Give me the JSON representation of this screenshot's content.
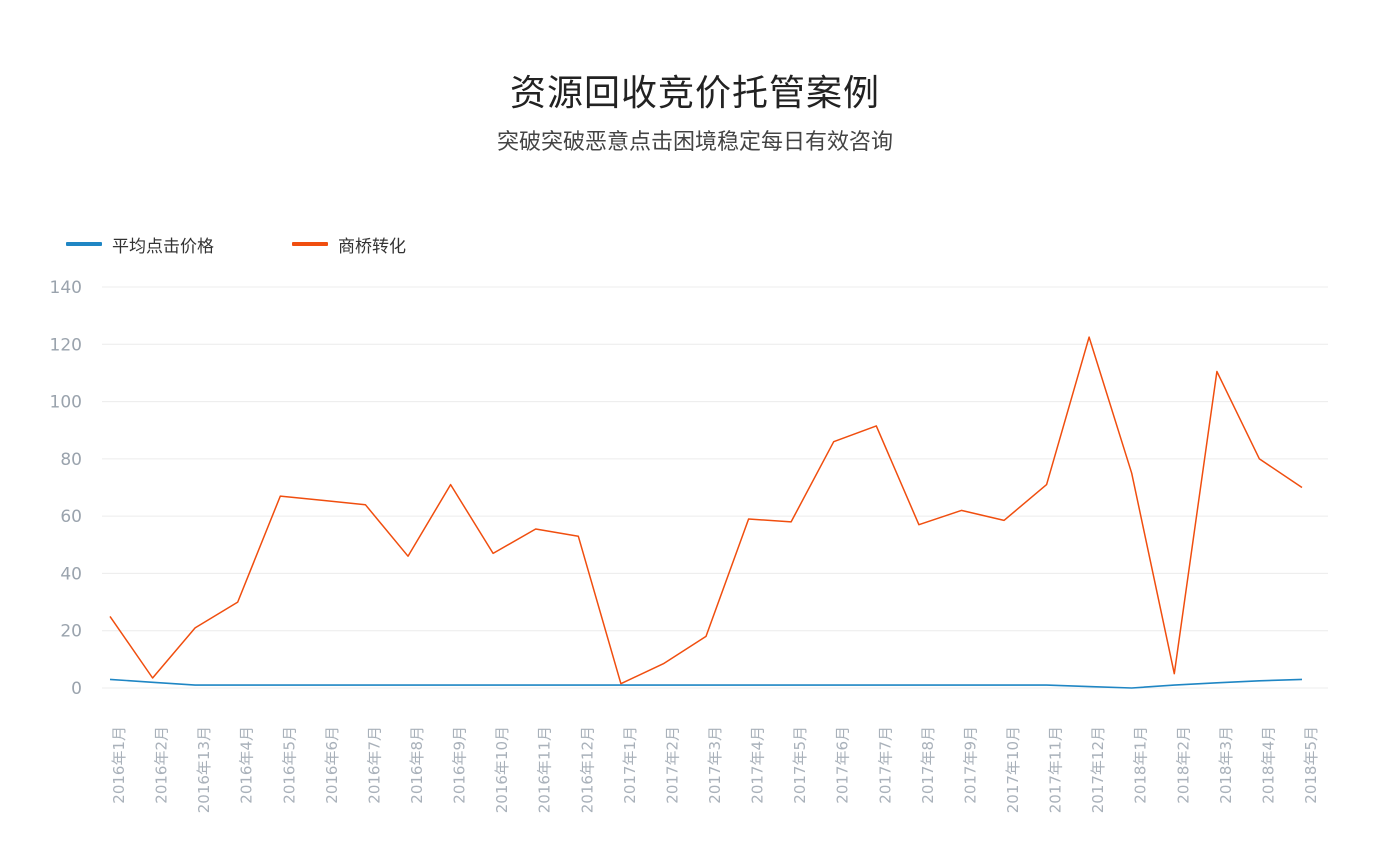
{
  "header": {
    "title": "资源回收竞价托管案例",
    "subtitle": "突破突破恶意点击困境稳定每日有效咨询"
  },
  "chart_data": {
    "type": "line",
    "categories": [
      "2016年1月",
      "2016年2月",
      "2016年13月",
      "2016年4月",
      "2016年5月",
      "2016年6月",
      "2016年7月",
      "2016年8月",
      "2016年9月",
      "2016年10月",
      "2016年11月",
      "2016年12月",
      "2017年1月",
      "2017年2月",
      "2017年3月",
      "2017年4月",
      "2017年5月",
      "2017年6月",
      "2017年7月",
      "2017年8月",
      "2017年9月",
      "2017年10月",
      "2017年11月",
      "2017年12月",
      "2018年1月",
      "2018年2月",
      "2018年3月",
      "2018年4月",
      "2018年5月"
    ],
    "series": [
      {
        "name": "平均点击价格",
        "color": "#1f86c4",
        "values": [
          3,
          2,
          1,
          1,
          1,
          1,
          1,
          1,
          1,
          1,
          1,
          1,
          1,
          1,
          1,
          1,
          1,
          1,
          1,
          1,
          1,
          1,
          1,
          0.5,
          0,
          1,
          1.8,
          2.5,
          3
        ]
      },
      {
        "name": "商桥转化",
        "color": "#f04e0f",
        "values": [
          25,
          3.5,
          21,
          30,
          67,
          65.5,
          64,
          46,
          71,
          47,
          55.5,
          53,
          1.5,
          8.5,
          18,
          59,
          58,
          86,
          91.5,
          57,
          62,
          58.5,
          71,
          122.5,
          75,
          5,
          110.5,
          80,
          70
        ]
      }
    ],
    "yticks": [
      "0",
      "20",
      "40",
      "60",
      "80",
      "100",
      "120",
      "140"
    ],
    "ylim": [
      0,
      140
    ],
    "grid": true,
    "legend_position": "top-left"
  }
}
